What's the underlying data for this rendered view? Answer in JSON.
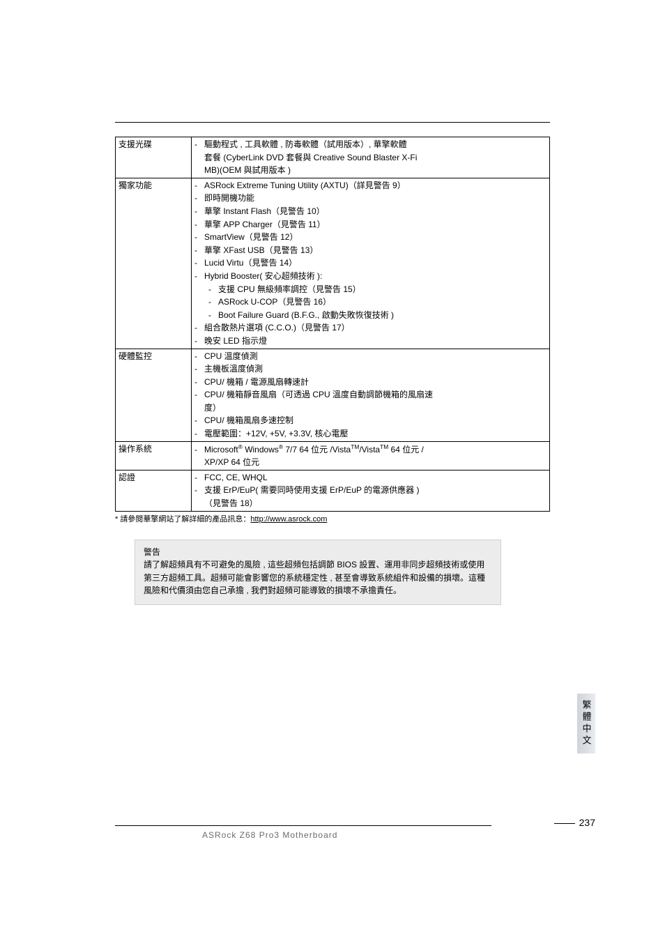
{
  "rows": [
    {
      "label": "支援光碟",
      "lines": [
        {
          "type": "feat",
          "text": "驅動程式 , 工具軟體 , 防毒軟體（試用版本）, 華擎軟體"
        },
        {
          "type": "indent",
          "text": "套餐 (CyberLink DVD 套餐與 Creative Sound Blaster X-Fi"
        },
        {
          "type": "indent",
          "text": "MB)(OEM 與試用版本 )"
        }
      ]
    },
    {
      "label": "獨家功能",
      "lines": [
        {
          "type": "feat",
          "text": "ASRock Extreme Tuning Utility (AXTU)（詳見警告 9）"
        },
        {
          "type": "feat",
          "text": "即時開機功能"
        },
        {
          "type": "feat",
          "text": "華擎 Instant Flash（見警告 10）"
        },
        {
          "type": "feat",
          "text": "華擎 APP Charger（見警告 11）"
        },
        {
          "type": "feat",
          "text": "SmartView（見警告 12）"
        },
        {
          "type": "feat",
          "text": "華擎 XFast USB（見警告 13）"
        },
        {
          "type": "feat",
          "text": "Lucid Virtu（見警告 14）"
        },
        {
          "type": "feat",
          "text": "Hybrid Booster( 安心超頻技術 ):"
        },
        {
          "type": "sub",
          "text": "支援 CPU 無級頻率調控（見警告 15）"
        },
        {
          "type": "sub",
          "text": "ASRock U-COP（見警告 16）"
        },
        {
          "type": "sub",
          "text": "Boot Failure Guard (B.F.G., 啟動失敗恢復技術 )"
        },
        {
          "type": "feat",
          "text": "組合散熱片選項 (C.C.O.)（見警告 17）"
        },
        {
          "type": "feat",
          "text": "晚安 LED 指示燈"
        }
      ]
    },
    {
      "label": "硬體監控",
      "lines": [
        {
          "type": "feat",
          "text": "CPU 溫度偵測"
        },
        {
          "type": "feat",
          "text": "主機板溫度偵測"
        },
        {
          "type": "feat",
          "text": "CPU/ 機箱 / 電源風扇轉速計"
        },
        {
          "type": "feat",
          "text": "CPU/ 機箱靜音風扇（可透過 CPU 溫度自動調節機箱的風扇速"
        },
        {
          "type": "indent",
          "text": "度）"
        },
        {
          "type": "feat",
          "text": "CPU/ 機箱風扇多速控制"
        },
        {
          "type": "feat",
          "text": "電壓範圍：+12V, +5V, +3.3V, 核心電壓"
        }
      ]
    },
    {
      "label": "操作系統",
      "lines": [
        {
          "type": "feat",
          "html": "Microsoft<sup>®</sup> Windows<sup>®</sup> 7/7 64 位元 /Vista<sup>TM</sup>/Vista<sup>TM</sup> 64 位元 /"
        },
        {
          "type": "indent",
          "text": "XP/XP 64 位元"
        }
      ]
    },
    {
      "label": "認證",
      "lines": [
        {
          "type": "feat",
          "text": "FCC, CE, WHQL"
        },
        {
          "type": "feat",
          "text": "支援 ErP/EuP( 需要同時使用支援 ErP/EuP 的電源供應器 )"
        },
        {
          "type": "indent",
          "text": "（見警告 18）"
        }
      ]
    }
  ],
  "footnote_prefix": "* 請參閱華擎網站了解詳細的產品訊息：",
  "footnote_url": "http://www.asrock.com",
  "warning": {
    "title": "警告",
    "body": "請了解超頻具有不可避免的風險 , 這些超頻包括調節 BIOS 設置、運用非同步超頻技術或使用第三方超頻工具。超頻可能會影響您的系統穩定性 , 甚至會導致系統組件和設備的損壞。這種風險和代價須由您自己承擔 , 我們對超頻可能導致的損壞不承擔責任。"
  },
  "side_tab": "繁體中文",
  "footer_text": "ASRock  Z68 Pro3  Motherboard",
  "page_number": "237"
}
